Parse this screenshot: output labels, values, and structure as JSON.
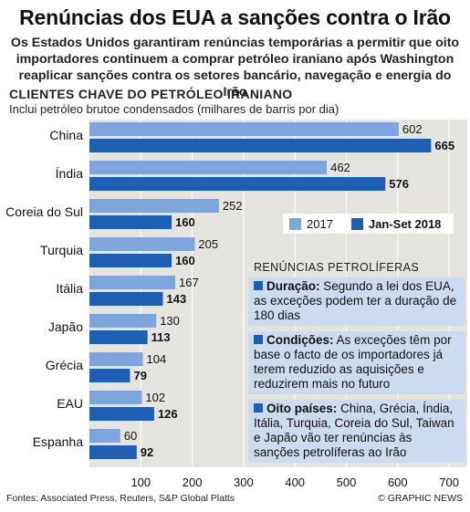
{
  "header": {
    "title": "Renúncias dos EUA a sanções contra o Irão",
    "subtitle": "Os Estados Unidos garantiram renúncias temporárias a permitir que oito importadores continuem a comprar petróleo iraniano após Washington reaplicar sanções contra os setores bancário, navegação e energia do Irão"
  },
  "section": {
    "title": "CLIENTES CHAVE DO PETRÓLEO IRANIANO",
    "subtitle": "Inclui petróleo brutoe condensados (milhares de barris por dia)"
  },
  "chart_data": {
    "type": "bar",
    "orientation": "horizontal",
    "title": "CLIENTES CHAVE DO PETRÓLEO IRANIANO",
    "categories": [
      "China",
      "Índia",
      "Coreia do Sul",
      "Turquia",
      "Itália",
      "Japão",
      "Grécia",
      "EAU",
      "Espanha"
    ],
    "series": [
      {
        "name": "2017",
        "color": "#7ea6dc",
        "values": [
          602,
          462,
          252,
          205,
          167,
          130,
          104,
          102,
          60
        ]
      },
      {
        "name": "Jan-Set 2018",
        "color": "#1f5fb1",
        "values": [
          665,
          576,
          160,
          160,
          143,
          113,
          79,
          126,
          92
        ]
      }
    ],
    "xticks": [
      100,
      200,
      300,
      400,
      500,
      600,
      700
    ],
    "xlim": [
      0,
      730
    ],
    "grid": true,
    "legend_position": "right"
  },
  "legend": {
    "label_2017": "2017",
    "label_2018": "Jan-Set 2018"
  },
  "notes": {
    "title": "RENÚNCIAS PETROLÍFERAS",
    "items": [
      {
        "head": "Duração:",
        "text": " Segundo a lei dos EUA, as exceções podem ter a duração de 180 dias"
      },
      {
        "head": "Condições:",
        "text": " As exceções têm por base o facto de os importadores já terem reduzido as aquisições e reduzirem mais no futuro"
      },
      {
        "head": "Oito países:",
        "text": " China, Grécia, Índia, Itália, Turquia, Coreia do Sul, Taiwan e Japão vão ter renúncias às sanções petrolíferas ao Irão"
      }
    ]
  },
  "footer": {
    "sources": "Fontes: Associated Press, Reuters, S&P Global Platts",
    "credit": "© GRAPHIC NEWS"
  },
  "colors": {
    "plot_bg": "#e6e4df",
    "bar_2017": "#7ea6dc",
    "bar_2018": "#1f5fb1",
    "note_bg": "#ccdcf0"
  }
}
